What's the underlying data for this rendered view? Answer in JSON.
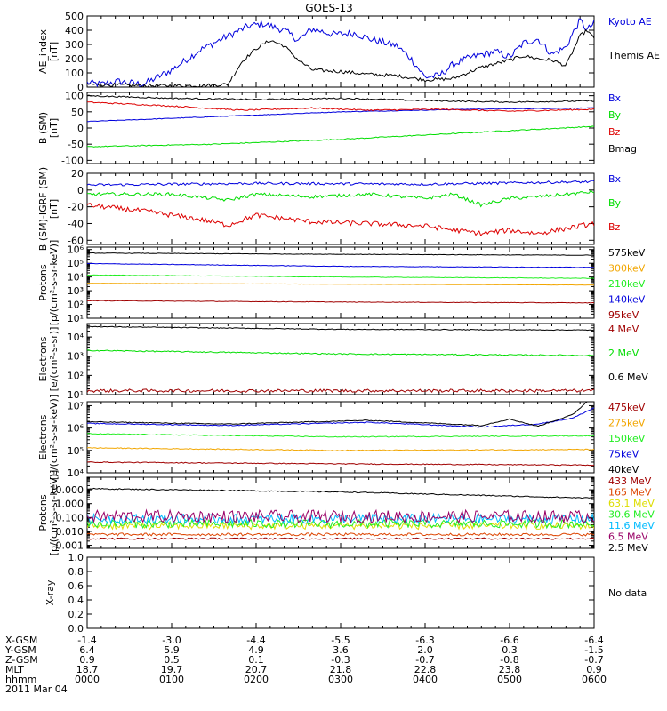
{
  "title": "GOES-13",
  "colors": {
    "black": "#000000",
    "blue": "#0000dd",
    "green": "#00dd00",
    "red": "#dd0000",
    "orange": "#f2a600",
    "brightgreen": "#22ee22",
    "cyan": "#00bbff",
    "yellow": "#dddd00",
    "darkred": "#a00000",
    "purple": "#990066"
  },
  "chart_data": [
    {
      "type": "line",
      "id": "ae",
      "ylabel": "AE_index\n[nT]",
      "yscale": "linear",
      "ylim": [
        0,
        500
      ],
      "yticks": [
        0,
        100,
        200,
        300,
        400,
        500
      ],
      "ytick_labels": [
        "0",
        "100",
        "200",
        "300",
        "400",
        "500"
      ],
      "series": [
        {
          "name": "Kyoto AE",
          "color": "#0000dd",
          "noise": 25,
          "x": [
            0,
            10,
            22,
            30,
            40,
            60,
            80,
            100,
            115,
            125,
            140,
            150,
            160,
            175,
            190,
            200,
            220,
            230,
            240,
            250,
            260,
            270,
            280,
            290,
            300,
            310,
            320,
            330,
            340,
            345,
            350,
            355,
            360
          ],
          "y": [
            30,
            20,
            40,
            30,
            20,
            120,
            260,
            360,
            430,
            445,
            400,
            330,
            410,
            370,
            380,
            340,
            290,
            200,
            70,
            80,
            160,
            200,
            230,
            250,
            210,
            310,
            340,
            230,
            280,
            380,
            470,
            400,
            450
          ]
        },
        {
          "name": "Themis AE",
          "color": "#000000",
          "noise": 12,
          "x": [
            0,
            20,
            40,
            60,
            80,
            100,
            110,
            120,
            130,
            140,
            150,
            160,
            180,
            200,
            220,
            240,
            260,
            280,
            300,
            310,
            320,
            330,
            340,
            350,
            355,
            360
          ],
          "y": [
            20,
            15,
            10,
            10,
            10,
            20,
            180,
            270,
            330,
            290,
            190,
            120,
            110,
            90,
            80,
            50,
            60,
            140,
            190,
            220,
            200,
            190,
            150,
            360,
            400,
            340
          ]
        }
      ]
    },
    {
      "type": "line",
      "id": "bsm",
      "ylabel": "B (SM)\n[nT]",
      "yscale": "linear",
      "ylim": [
        -110,
        110
      ],
      "yticks": [
        -100,
        -50,
        0,
        50,
        100
      ],
      "ytick_labels": [
        "-100",
        "-50",
        "0",
        "50",
        "100"
      ],
      "series": [
        {
          "name": "Bx",
          "color": "#0000dd",
          "noise": 1,
          "x": [
            0,
            90,
            180,
            270,
            360
          ],
          "y": [
            20,
            35,
            50,
            58,
            62
          ]
        },
        {
          "name": "By",
          "color": "#00dd00",
          "noise": 1.5,
          "x": [
            0,
            90,
            180,
            270,
            360
          ],
          "y": [
            -58,
            -50,
            -35,
            -15,
            5
          ]
        },
        {
          "name": "Bz",
          "color": "#dd0000",
          "noise": 2,
          "x": [
            0,
            60,
            110,
            160,
            200,
            250,
            300,
            360
          ],
          "y": [
            80,
            68,
            55,
            62,
            55,
            58,
            52,
            58
          ]
        },
        {
          "name": "Bmag",
          "color": "#000000",
          "noise": 2,
          "x": [
            0,
            60,
            120,
            180,
            240,
            300,
            360
          ],
          "y": [
            100,
            92,
            88,
            92,
            85,
            80,
            84
          ]
        }
      ]
    },
    {
      "type": "line",
      "id": "bigrf",
      "ylabel": "B (SM)-IGRF (SM)\n[nT]",
      "yscale": "linear",
      "ylim": [
        -65,
        20
      ],
      "yticks": [
        -60,
        -40,
        -20,
        0,
        20
      ],
      "ytick_labels": [
        "-60",
        "-40",
        "-20",
        "0",
        "20"
      ],
      "series": [
        {
          "name": "Bx",
          "color": "#0000dd",
          "noise": 1.5,
          "x": [
            0,
            120,
            240,
            360
          ],
          "y": [
            6,
            8,
            7,
            10
          ]
        },
        {
          "name": "By",
          "color": "#00dd00",
          "noise": 2,
          "x": [
            0,
            60,
            100,
            120,
            160,
            200,
            240,
            260,
            280,
            300,
            320,
            360
          ],
          "y": [
            -5,
            -5,
            -12,
            -5,
            -8,
            -5,
            -10,
            -5,
            -18,
            -10,
            -8,
            -2
          ]
        },
        {
          "name": "Bz",
          "color": "#dd0000",
          "noise": 3,
          "x": [
            0,
            40,
            80,
            100,
            120,
            160,
            200,
            240,
            280,
            300,
            320,
            360
          ],
          "y": [
            -18,
            -25,
            -35,
            -42,
            -30,
            -38,
            -40,
            -43,
            -52,
            -48,
            -52,
            -40
          ]
        }
      ]
    },
    {
      "type": "line",
      "id": "protons1",
      "ylabel": "Protons\n[p/(cm²-s-sr-keV)]",
      "yscale": "log",
      "ylim": [
        10,
        1500000
      ],
      "yticks": [
        10,
        100,
        1000,
        10000,
        100000,
        1000000
      ],
      "ytick_labels": [
        "10¹",
        "10²",
        "10³",
        "10⁴",
        "10⁵",
        "10⁶"
      ],
      "series": [
        {
          "name": "575keV",
          "color": "#000000",
          "noise": 0.02,
          "x": [
            0,
            180,
            360
          ],
          "y": [
            550000,
            450000,
            380000
          ]
        },
        {
          "name": "300keV",
          "color": "#f2a600",
          "noise": 0.01,
          "x": [
            0,
            180,
            360
          ],
          "y": [
            3500,
            3000,
            2600
          ]
        },
        {
          "name": "210keV",
          "color": "#22ee22",
          "noise": 0.02,
          "x": [
            0,
            180,
            360
          ],
          "y": [
            14000,
            10000,
            8000
          ]
        },
        {
          "name": "140keV",
          "color": "#0000dd",
          "noise": 0.02,
          "x": [
            0,
            180,
            360
          ],
          "y": [
            95000,
            60000,
            50000
          ]
        },
        {
          "name": "95keV",
          "color": "#a00000",
          "noise": 0.02,
          "x": [
            0,
            180,
            360
          ],
          "y": [
            190,
            150,
            130
          ]
        }
      ]
    },
    {
      "type": "line",
      "id": "electrons1",
      "ylabel": "Electrons\n[e/(cm²-s-sr)]",
      "yscale": "log",
      "ylim": [
        10,
        50000
      ],
      "yticks": [
        10,
        100,
        1000,
        10000
      ],
      "ytick_labels": [
        "10¹",
        "10²",
        "10³",
        "10⁴"
      ],
      "series": [
        {
          "name": "4 MeV",
          "color": "#a00000",
          "noise": 0.08,
          "x": [
            0,
            360
          ],
          "y": [
            16,
            16
          ]
        },
        {
          "name": "2 MeV",
          "color": "#00dd00",
          "noise": 0.03,
          "x": [
            0,
            180,
            360
          ],
          "y": [
            2000,
            1300,
            1100
          ]
        },
        {
          "name": "0.6 MeV",
          "color": "#000000",
          "noise": 0.02,
          "x": [
            0,
            180,
            360
          ],
          "y": [
            35000,
            25000,
            23000
          ]
        }
      ]
    },
    {
      "type": "line",
      "id": "electrons2",
      "ylabel": "Electrons\n[e/(cm²-s-sr-keV)]",
      "yscale": "log",
      "ylim": [
        10000,
        15000000
      ],
      "yticks": [
        10000,
        100000,
        1000000,
        10000000
      ],
      "ytick_labels": [
        "10⁴",
        "10⁵",
        "10⁶",
        "10⁷"
      ],
      "series": [
        {
          "name": "475keV",
          "color": "#a00000",
          "noise": 0.02,
          "x": [
            0,
            180,
            360
          ],
          "y": [
            30000,
            25000,
            22000
          ]
        },
        {
          "name": "275keV",
          "color": "#f2a600",
          "noise": 0.02,
          "x": [
            0,
            180,
            360
          ],
          "y": [
            130000,
            100000,
            110000
          ]
        },
        {
          "name": "150keV",
          "color": "#22ee22",
          "noise": 0.02,
          "x": [
            0,
            180,
            360
          ],
          "y": [
            550000,
            400000,
            450000
          ]
        },
        {
          "name": "75keV",
          "color": "#0000dd",
          "noise": 0.02,
          "x": [
            0,
            100,
            200,
            280,
            320,
            345,
            360
          ],
          "y": [
            1600000,
            1300000,
            1800000,
            1100000,
            1500000,
            2800000,
            8000000
          ]
        },
        {
          "name": "40keV",
          "color": "#000000",
          "noise": 0.02,
          "x": [
            0,
            100,
            200,
            280,
            300,
            320,
            345,
            360
          ],
          "y": [
            1900000,
            1500000,
            2200000,
            1300000,
            2500000,
            1200000,
            4000000,
            30000000
          ]
        }
      ]
    },
    {
      "type": "line",
      "id": "protons2",
      "ylabel": "Protons\n[p/(cm²-s-sr-keV)]",
      "yscale": "log",
      "ylim": [
        0.0006,
        80
      ],
      "yticks": [
        0.001,
        0.01,
        0.1,
        1,
        10
      ],
      "ytick_labels": [
        "0.001",
        "0.010",
        "0.100",
        "1.000",
        "10.000"
      ],
      "series": [
        {
          "name": "433 MeV",
          "color": "#a00000",
          "noise": 0.06,
          "x": [
            0,
            360
          ],
          "y": [
            0.003,
            0.003
          ]
        },
        {
          "name": "165 MeV",
          "color": "#dd4400",
          "noise": 0.1,
          "x": [
            0,
            360
          ],
          "y": [
            0.006,
            0.006
          ]
        },
        {
          "name": "63.1 MeV",
          "color": "#dddd00",
          "noise": 0.25,
          "x": [
            0,
            360
          ],
          "y": [
            0.025,
            0.025
          ]
        },
        {
          "name": "30.6 MeV",
          "color": "#22ee22",
          "noise": 0.3,
          "x": [
            0,
            360
          ],
          "y": [
            0.035,
            0.035
          ]
        },
        {
          "name": "11.6 MeV",
          "color": "#00bbff",
          "noise": 0.35,
          "x": [
            0,
            360
          ],
          "y": [
            0.08,
            0.08
          ]
        },
        {
          "name": "6.5 MeV",
          "color": "#990066",
          "noise": 0.45,
          "x": [
            0,
            360
          ],
          "y": [
            0.12,
            0.12
          ]
        },
        {
          "name": "2.5 MeV",
          "color": "#000000",
          "noise": 0.04,
          "x": [
            0,
            180,
            360
          ],
          "y": [
            12,
            7,
            2.5
          ]
        }
      ]
    },
    {
      "type": "line",
      "id": "xray",
      "ylabel": "X-ray",
      "yscale": "linear",
      "ylim": [
        0,
        1.0
      ],
      "yticks": [
        0,
        0.2,
        0.4,
        0.6,
        0.8,
        1.0
      ],
      "ytick_labels": [
        "0.0",
        "0.2",
        "0.4",
        "0.6",
        "0.8",
        "1.0"
      ],
      "no_data_label": "No data",
      "series": []
    }
  ],
  "footer": {
    "row_labels": [
      "X-GSM",
      "Y-GSM",
      "Z-GSM",
      "MLT",
      "hhmm"
    ],
    "columns": [
      [
        "-1.4",
        "6.4",
        "0.9",
        "18.7",
        "0000"
      ],
      [
        "-3.0",
        "5.9",
        "0.5",
        "19.7",
        "0100"
      ],
      [
        "-4.4",
        "4.9",
        "0.1",
        "20.7",
        "0200"
      ],
      [
        "-5.5",
        "3.6",
        "-0.3",
        "21.8",
        "0300"
      ],
      [
        "-6.3",
        "2.0",
        "-0.7",
        "22.8",
        "0400"
      ],
      [
        "-6.6",
        "0.3",
        "-0.8",
        "23.8",
        "0500"
      ],
      [
        "-6.4",
        "-1.5",
        "-0.7",
        "0.9",
        "0600"
      ]
    ],
    "date": "2011 Mar 04"
  }
}
